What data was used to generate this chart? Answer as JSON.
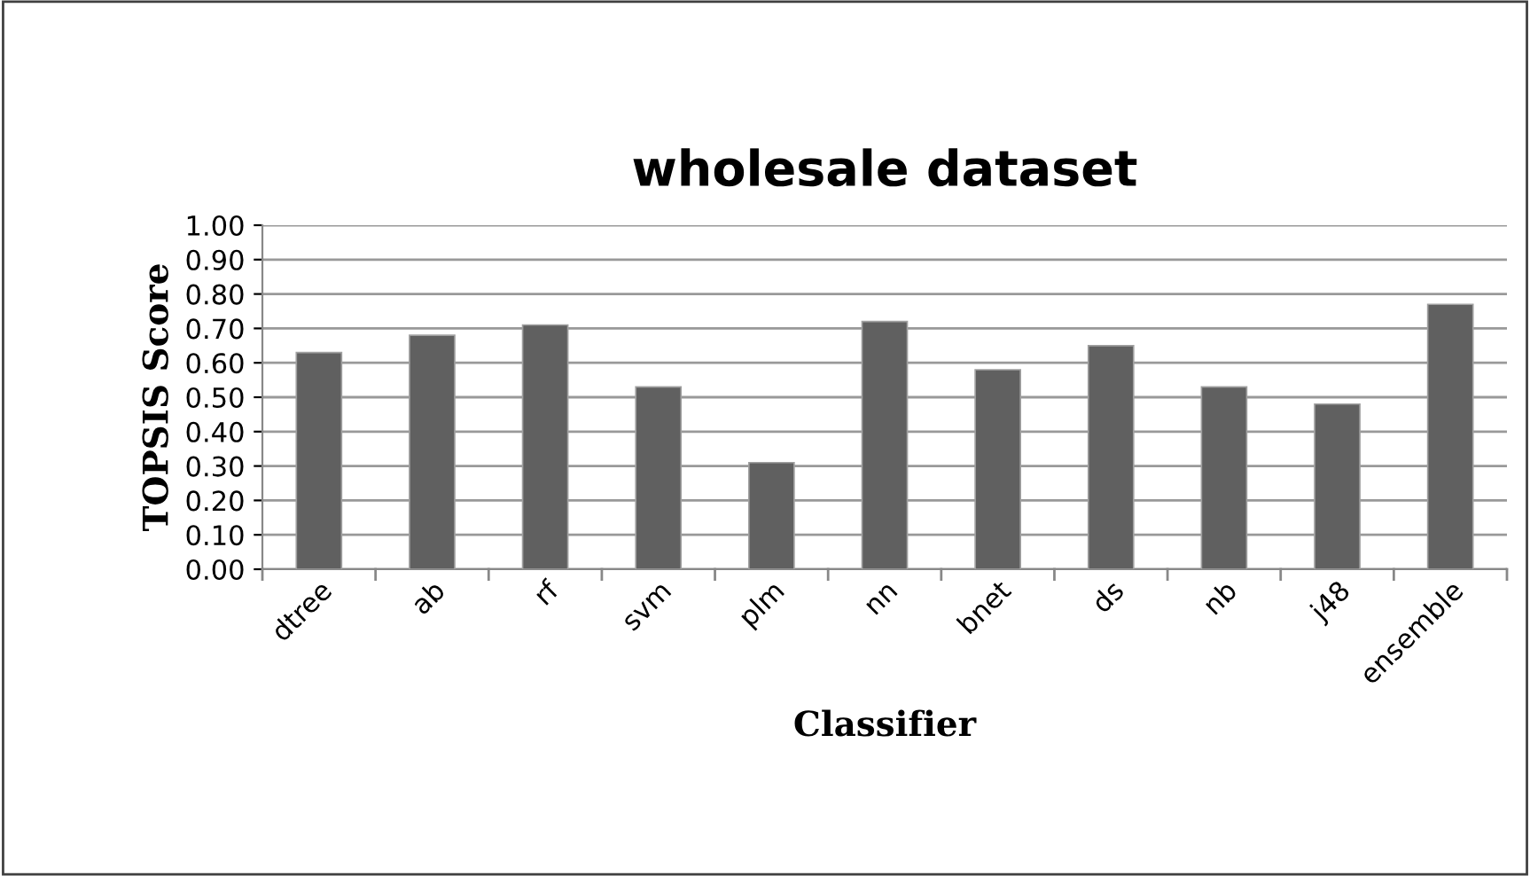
{
  "chart_data": {
    "type": "bar",
    "title": "wholesale dataset",
    "xlabel": "Classifier",
    "ylabel": "TOPSIS Score",
    "categories": [
      "dtree",
      "ab",
      "rf",
      "svm",
      "plm",
      "nn",
      "bnet",
      "ds",
      "nb",
      "j48",
      "ensemble"
    ],
    "values": [
      0.63,
      0.68,
      0.71,
      0.53,
      0.31,
      0.72,
      0.58,
      0.65,
      0.53,
      0.48,
      0.77
    ],
    "color": "#606060",
    "ylim": [
      0,
      1
    ],
    "yticks": [
      {
        "value": 0,
        "label": "0.00"
      },
      {
        "value": 0.1,
        "label": "0.10"
      },
      {
        "value": 0.2,
        "label": "0.20"
      },
      {
        "value": 0.3,
        "label": "0.30"
      },
      {
        "value": 0.4,
        "label": "0.40"
      },
      {
        "value": 0.5,
        "label": "0.50"
      },
      {
        "value": 0.6,
        "label": "0.60"
      },
      {
        "value": 0.7,
        "label": "0.70"
      },
      {
        "value": 0.8,
        "label": "0.80"
      },
      {
        "value": 0.9,
        "label": "0.90"
      },
      {
        "value": 1,
        "label": "1.00"
      }
    ],
    "grid": "y",
    "legend": false
  }
}
